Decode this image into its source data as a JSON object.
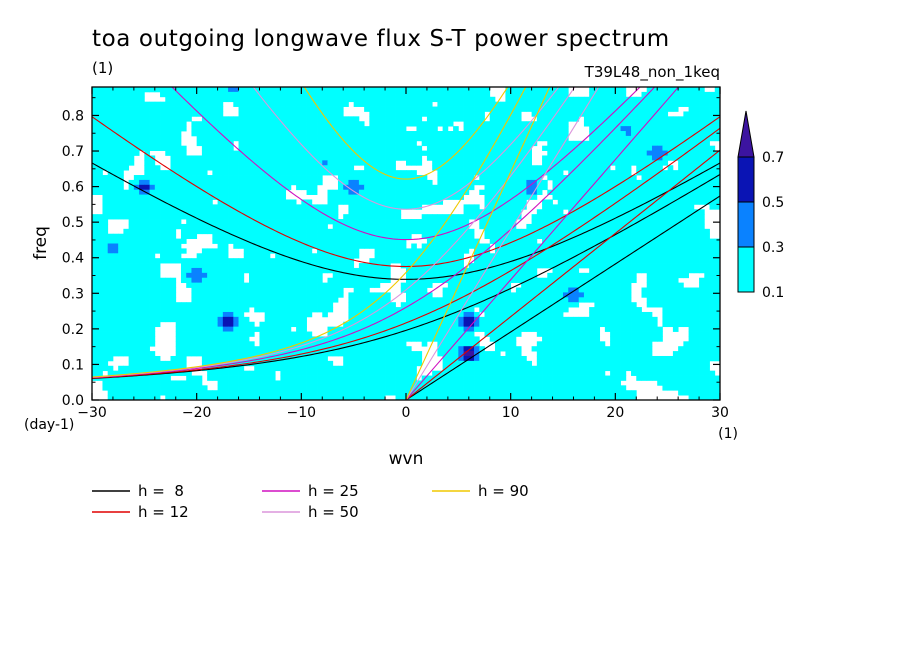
{
  "chart_data": {
    "type": "heatmap",
    "title": "toa outgoing longwave flux S-T power spectrum",
    "subtitle_left": "(1)",
    "subtitle_right": "T39L48_non_1keq",
    "xlabel": "wvn",
    "ylabel": "freq",
    "x_unit": "(1)",
    "y_unit": "(day-1)",
    "xlim": [
      -30,
      30
    ],
    "ylim": [
      0,
      0.88
    ],
    "x_ticks": [
      "-30",
      "-20",
      "-10",
      "0",
      "10",
      "20",
      "30"
    ],
    "y_ticks": [
      "0.0",
      "0.1",
      "0.2",
      "0.3",
      "0.4",
      "0.5",
      "0.6",
      "0.7",
      "0.8"
    ],
    "colorbar": {
      "levels": [
        "0.1",
        "0.3",
        "0.5",
        "0.7"
      ],
      "colors": [
        "#00ffff",
        "#0a82ff",
        "#0a14b4",
        "#3c14a0"
      ],
      "extend": "max"
    },
    "contour_fill": {
      "comment_levels": [
        0.1,
        0.3,
        0.5,
        0.7
      ],
      "peaks": [
        {
          "x": 6,
          "y": 0.13,
          "value": 0.75
        },
        {
          "x": 6,
          "y": 0.22,
          "value": 0.6
        },
        {
          "x": -17,
          "y": 0.22,
          "value": 0.6
        },
        {
          "x": -25,
          "y": 0.6,
          "value": 0.55
        },
        {
          "x": -20,
          "y": 0.35,
          "value": 0.5
        },
        {
          "x": 16,
          "y": 0.3,
          "value": 0.5
        },
        {
          "x": -5,
          "y": 0.6,
          "value": 0.5
        },
        {
          "x": 24,
          "y": 0.69,
          "value": 0.5
        },
        {
          "x": -28,
          "y": 0.43,
          "value": 0.45
        },
        {
          "x": 12,
          "y": 0.6,
          "value": 0.45
        }
      ]
    },
    "dispersion_curves": [
      {
        "name": "h =  8",
        "h": 8,
        "color": "#000000"
      },
      {
        "name": "h = 12",
        "h": 12,
        "color": "#e00000"
      },
      {
        "name": "h = 25",
        "h": 25,
        "color": "#d010c0"
      },
      {
        "name": "h = 50",
        "h": 50,
        "color": "#dc96dc"
      },
      {
        "name": "h = 90",
        "h": 90,
        "color": "#f0c800"
      }
    ],
    "legend_placement": "bottom-left"
  }
}
